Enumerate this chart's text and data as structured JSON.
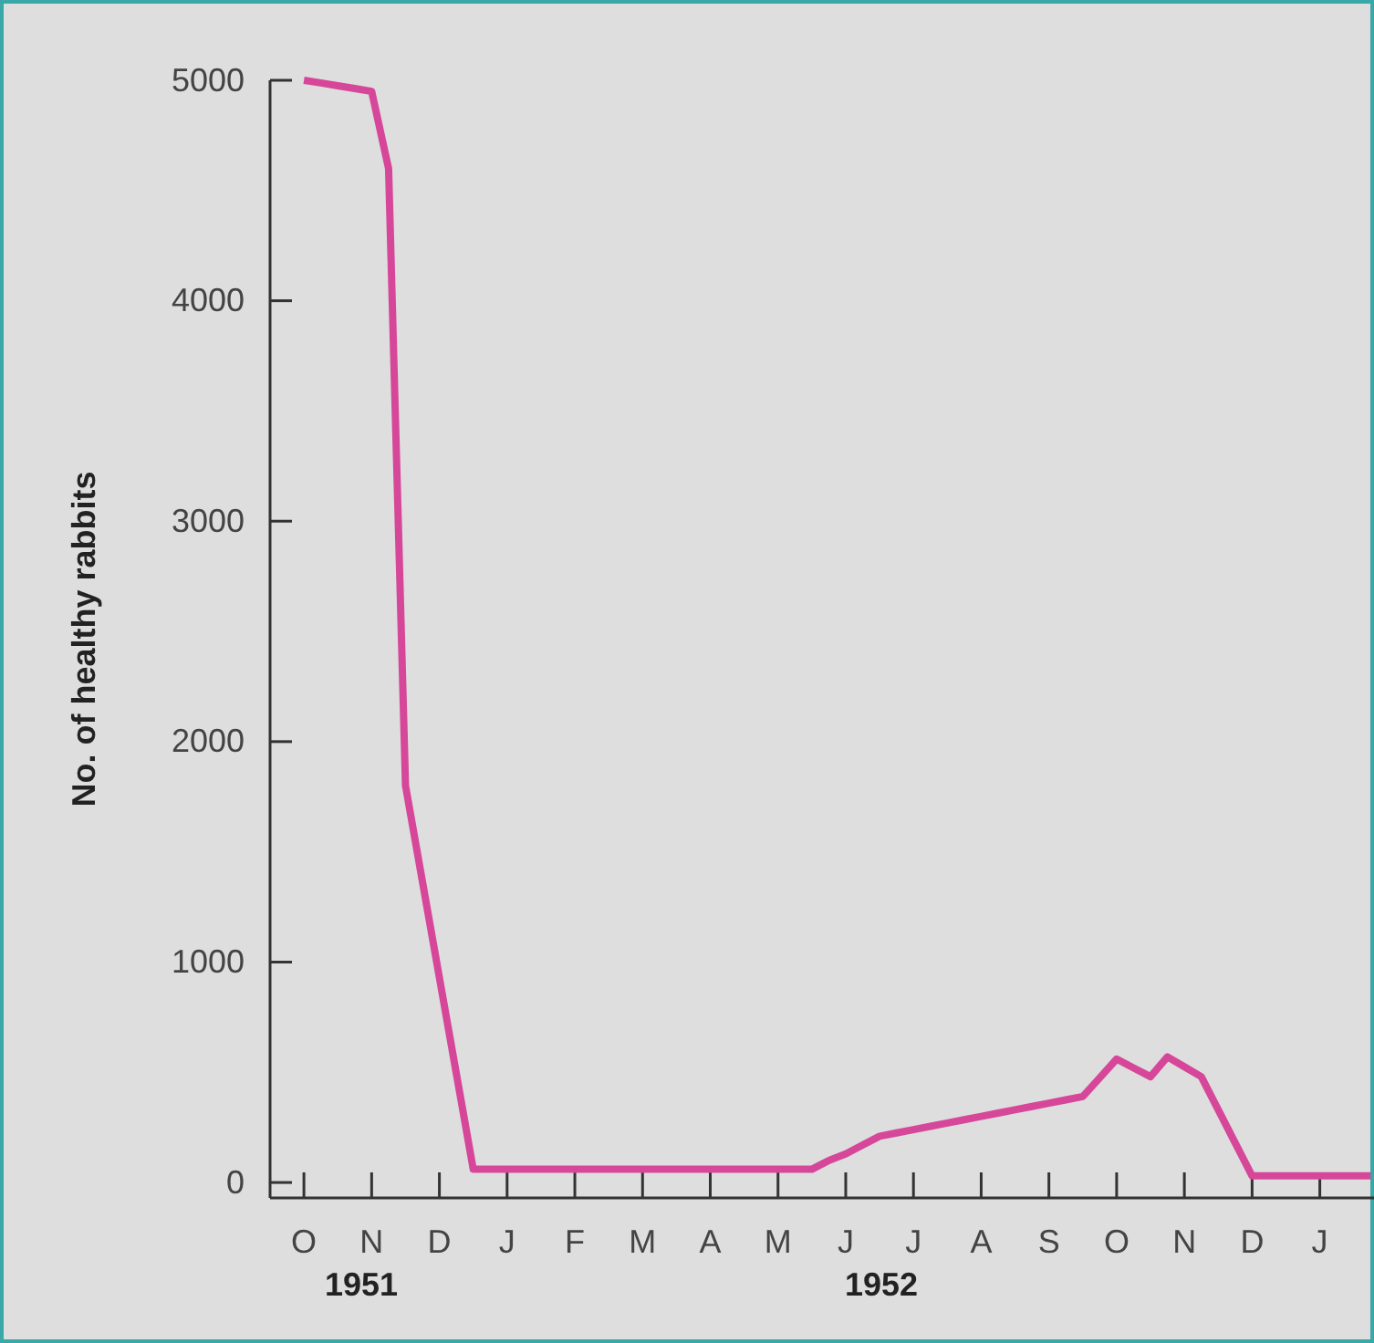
{
  "chart_data": {
    "type": "line",
    "ylabel": "No. of healthy rabbits",
    "categories": [
      "O",
      null,
      null,
      null,
      "N",
      null,
      null,
      null,
      "D",
      null,
      null,
      null,
      "J",
      null,
      null,
      null,
      "F",
      null,
      null,
      null,
      "M",
      null,
      null,
      null,
      "A",
      null,
      null,
      null,
      "M",
      null,
      null,
      null,
      "J",
      null,
      null,
      null,
      "J",
      null,
      null,
      null,
      "A",
      null,
      null,
      null,
      "S",
      null,
      null,
      null,
      "O",
      null,
      null,
      null,
      "N",
      null,
      null,
      null,
      "D",
      null,
      null,
      null,
      "J",
      null,
      null,
      null
    ],
    "series": [
      {
        "color": "#d6479a",
        "values": [
          5000,
          4988,
          4975,
          4963,
          4950,
          4600,
          1800,
          1365,
          930,
          495,
          60,
          60,
          60,
          60,
          60,
          60,
          60,
          60,
          60,
          60,
          60,
          60,
          60,
          60,
          60,
          60,
          60,
          60,
          60,
          60,
          60,
          100,
          130,
          170,
          210,
          225,
          240,
          255,
          270,
          285,
          300,
          315,
          330,
          345,
          360,
          375,
          390,
          475,
          560,
          520,
          480,
          570,
          525,
          480,
          330,
          180,
          30,
          30,
          30,
          30,
          30,
          30,
          30,
          30
        ]
      }
    ],
    "ylim": [
      -70,
      5000
    ],
    "yticks": [
      0,
      1000,
      2000,
      3000,
      4000,
      5000
    ],
    "annotations": [
      "1951",
      "1952"
    ],
    "grid": false,
    "marker": "none",
    "line_style": "solid"
  }
}
